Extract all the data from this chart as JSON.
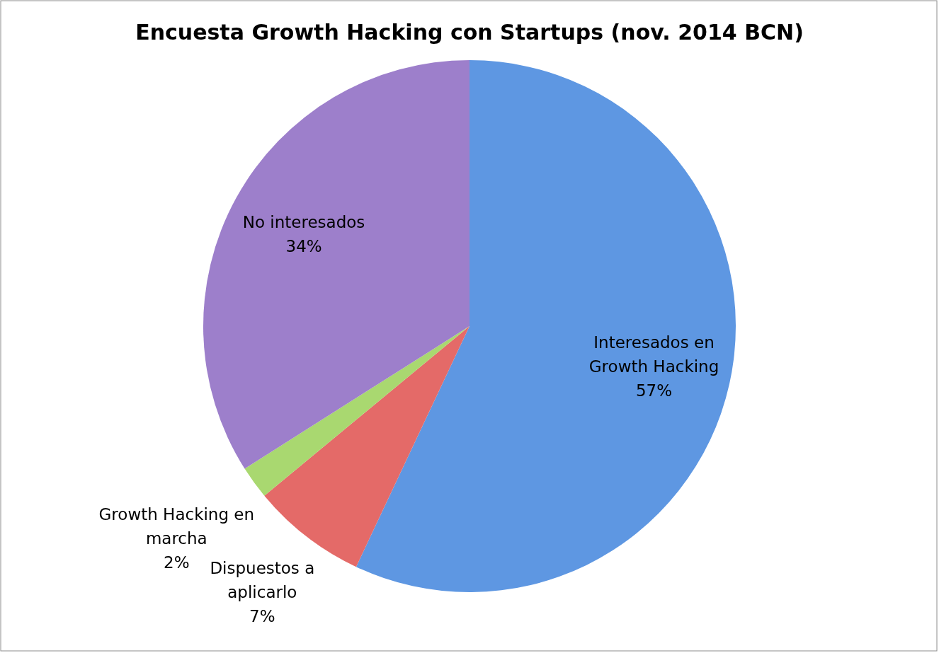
{
  "chart_data": {
    "type": "pie",
    "title": "Encuesta Growth Hacking con Startups (nov. 2014 BCN)",
    "categories": [
      "Interesados en Growth Hacking",
      "Dispuestos a aplicarlo",
      "Growth Hacking en marcha",
      "No interesados"
    ],
    "values": [
      57,
      7,
      2,
      34
    ],
    "value_labels": [
      "57%",
      "7%",
      "2%",
      "34%"
    ],
    "colors": [
      "#5e97e2",
      "#e46a68",
      "#a9d870",
      "#9d7fcb"
    ]
  }
}
